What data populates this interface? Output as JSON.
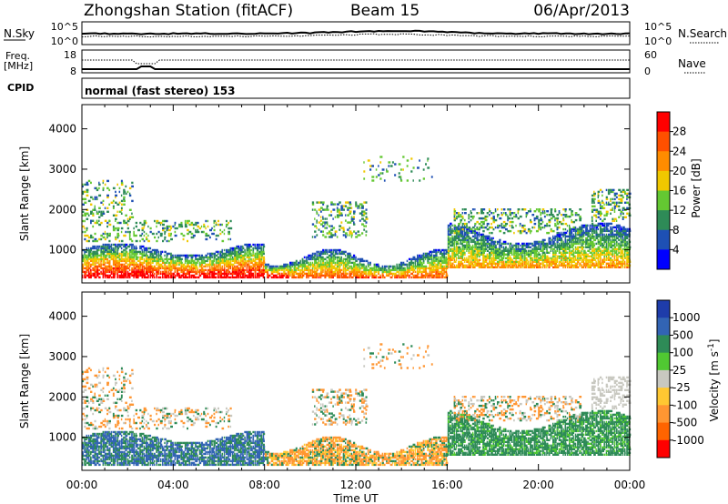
{
  "header": {
    "title": "Zhongshan Station (fitACF)",
    "beam": "Beam 15",
    "date": "06/Apr/2013"
  },
  "status_panel": {
    "nsky_label": "N.Sky",
    "nsky_ticks": [
      "10^5",
      "10^0"
    ],
    "nsearch_label": "N.Search",
    "nsearch_ticks": [
      "10^5",
      "10^0"
    ],
    "freq_label": "Freq.",
    "freq_unit": "[MHz]",
    "freq_ticks": [
      "18",
      "8"
    ],
    "nave_label": "Nave",
    "nave_ticks": [
      "60",
      "0"
    ],
    "cpid_label": "CPID",
    "cpid_text": "normal (fast stereo) 153"
  },
  "chart_data": [
    {
      "type": "heatmap",
      "title": "",
      "xlabel": "",
      "ylabel": "Slant Range [km]",
      "x_ticks": [
        "00:00",
        "04:00",
        "08:00",
        "12:00",
        "16:00",
        "20:00",
        "00:00"
      ],
      "x_range_hours": [
        0,
        24
      ],
      "ylim": [
        180,
        4600
      ],
      "y_ticks": [
        1000,
        2000,
        3000,
        4000
      ],
      "colorbar": {
        "label": "Power [dB]",
        "ticks": [
          4,
          8,
          12,
          16,
          20,
          24,
          28
        ],
        "range": [
          0,
          32
        ],
        "colors": [
          "#0000ff",
          "#1e50b4",
          "#2e8b57",
          "#64c832",
          "#f0c800",
          "#ff8c00",
          "#ff5000",
          "#ff0000"
        ]
      }
    },
    {
      "type": "heatmap",
      "title": "",
      "xlabel": "Time UT",
      "ylabel": "Slant Range [km]",
      "x_ticks": [
        "00:00",
        "04:00",
        "08:00",
        "12:00",
        "16:00",
        "20:00",
        "00:00"
      ],
      "x_range_hours": [
        0,
        24
      ],
      "ylim": [
        180,
        4600
      ],
      "y_ticks": [
        1000,
        2000,
        3000,
        4000
      ],
      "colorbar": {
        "label": "Velocity [m s",
        "label_superscript": "-1",
        "label_close": "]",
        "ticks": [
          "1000",
          "500",
          "100",
          "25",
          "-25",
          "-100",
          "-500",
          "-1000"
        ],
        "colors": [
          "#1e3caa",
          "#3264b4",
          "#2e8b57",
          "#50c832",
          "#c8c8c0",
          "#ffc832",
          "#ff9632",
          "#ff6400",
          "#ff0000"
        ]
      }
    }
  ]
}
